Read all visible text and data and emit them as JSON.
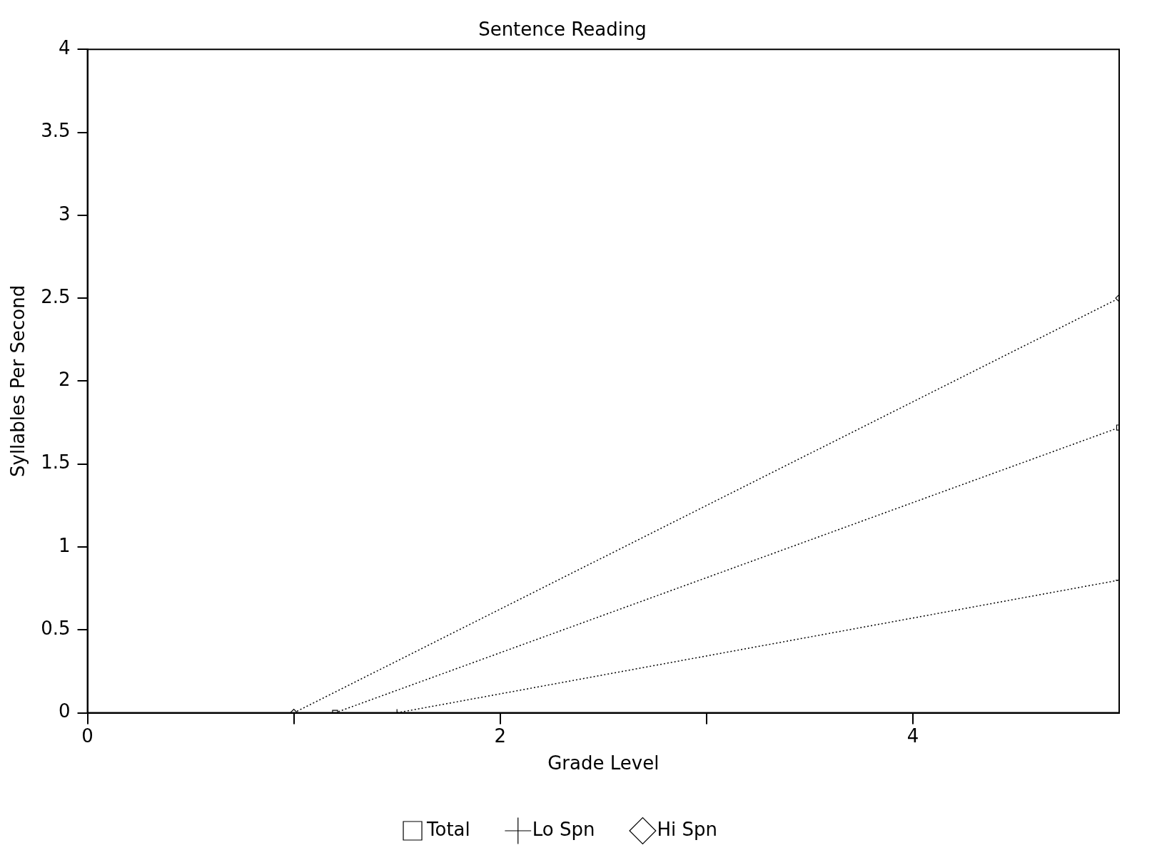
{
  "chart_data": {
    "type": "line",
    "title": "Sentence Reading",
    "xlabel": "Grade Level",
    "ylabel": "Syllables Per Second",
    "xlim": [
      0,
      5
    ],
    "xticks": [
      0,
      {
        "value": 1,
        "label": null
      },
      2,
      {
        "value": 3,
        "label": null
      },
      4
    ],
    "ylim": [
      0,
      4
    ],
    "yticks": [
      0,
      0.5,
      1,
      1.5,
      2,
      2.5,
      3,
      3.5,
      4
    ],
    "series": [
      {
        "name": "Total",
        "color": "#000000",
        "marker": "square",
        "x": [
          1.2,
          5
        ],
        "values": [
          0,
          1.72
        ]
      },
      {
        "name": "Lo Spn",
        "color": "#000000",
        "marker": "cross",
        "x": [
          1.5,
          5
        ],
        "values": [
          0,
          0.8
        ]
      },
      {
        "name": "Hi Spn",
        "color": "#000000",
        "marker": "diamond",
        "x": [
          1,
          5
        ],
        "values": [
          0,
          2.5
        ]
      }
    ],
    "line_style": "dotted",
    "grid": false,
    "legend": "bottom"
  }
}
